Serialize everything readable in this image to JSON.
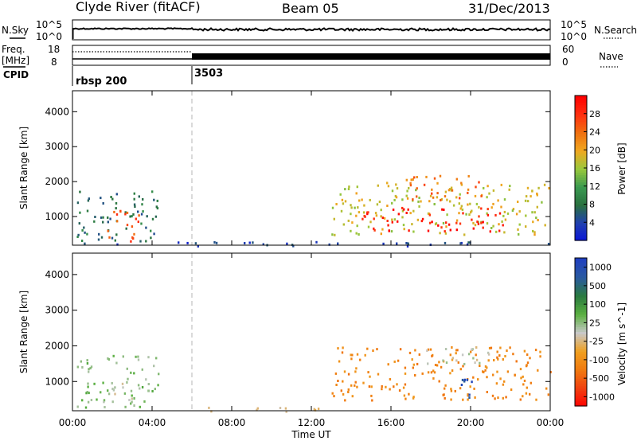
{
  "header": {
    "station": "Clyde River (fitACF)",
    "beam": "Beam 05",
    "date": "31/Dec/2013"
  },
  "strip_labels": {
    "nsky": "N.Sky",
    "nsearch": "N.Search",
    "freq_line1": "Freq.",
    "freq_line2": "[MHz]",
    "nave": "Nave",
    "cpid": "CPID"
  },
  "chart_data": [
    {
      "type": "line",
      "name": "noise",
      "x_range": [
        "00:00",
        "24:00"
      ],
      "left_ticks": [
        "10^5",
        "10^0"
      ],
      "right_ticks": [
        "10^5",
        "10^0"
      ],
      "series": [
        {
          "name": "N.Sky",
          "style": "solid",
          "level": "high, flat with small fluctuations"
        },
        {
          "name": "N.Search",
          "style": "dotted"
        }
      ]
    },
    {
      "type": "line",
      "name": "frequency_nave",
      "x_range": [
        "00:00",
        "24:00"
      ],
      "left_ticks": [
        "18",
        "8"
      ],
      "right_ticks": [
        "60",
        "0"
      ],
      "series": [
        {
          "name": "Freq.",
          "unit": "MHz",
          "points": [
            [
              "00:00",
              10.5
            ],
            [
              "24:00",
              10.5
            ]
          ]
        },
        {
          "name": "Nave",
          "style": "dotted",
          "points": [
            [
              "00:00",
              30
            ],
            [
              "06:00",
              30
            ],
            [
              "06:00",
              21
            ],
            [
              "24:00",
              21
            ]
          ]
        }
      ]
    },
    {
      "type": "table",
      "name": "cpid",
      "segments": [
        {
          "start": "00:00",
          "end": "06:00",
          "label": "rbsp 200"
        },
        {
          "start": "06:00",
          "end": "24:00",
          "label": "3503"
        }
      ]
    },
    {
      "type": "heatmap",
      "name": "power",
      "ylabel": "Slant Range [km]",
      "y_ticks": [
        "1000",
        "2000",
        "3000",
        "4000"
      ],
      "ylim": [
        180,
        4600
      ],
      "colorbar_label": "Power [dB]",
      "colorbar_ticks": [
        "4",
        "8",
        "12",
        "16",
        "20",
        "24",
        "28"
      ],
      "colorbar_range": [
        0,
        32
      ],
      "colorbar_colors": [
        "#0a14d8",
        "#2040b0",
        "#2a7040",
        "#3a9a50",
        "#9ac83c",
        "#f0a820",
        "#f07010",
        "#ff3010",
        "#ff0000"
      ],
      "regions": [
        {
          "t0": 0.2,
          "t1": 4.3,
          "r0": 300,
          "r1": 1800,
          "level": 8
        },
        {
          "t0": 1.7,
          "t1": 3.3,
          "r0": 300,
          "r1": 1300,
          "level": 26
        },
        {
          "t0": 13.0,
          "t1": 24.0,
          "r0": 500,
          "r1": 2000,
          "level": 18
        },
        {
          "t0": 14.5,
          "t1": 21.8,
          "r0": 600,
          "r1": 1300,
          "level": 30
        },
        {
          "t0": 16.5,
          "t1": 20.5,
          "r0": 1500,
          "r1": 2200,
          "level": 24
        },
        {
          "t0": 0.0,
          "t1": 24.0,
          "r0": 180,
          "r1": 300,
          "level": 4
        }
      ]
    },
    {
      "type": "heatmap",
      "name": "velocity",
      "ylabel": "Slant Range [km]",
      "y_ticks": [
        "1000",
        "2000",
        "3000",
        "4000"
      ],
      "ylim": [
        180,
        4600
      ],
      "colorbar_label": "Velocity [m s^-1]",
      "colorbar_ticks": [
        "1000",
        "500",
        "100",
        "25",
        "-25",
        "-100",
        "-500",
        "-1000"
      ],
      "colorbar_range": [
        -1200,
        1200
      ],
      "colorbar_colors": [
        "#2040c0",
        "#2a5aa0",
        "#2a7a40",
        "#5ab040",
        "#c8c8c8",
        "#f0a020",
        "#f07a10",
        "#f04010",
        "#ff0000"
      ],
      "regions": [
        {
          "t0": 0.2,
          "t1": 4.3,
          "r0": 300,
          "r1": 1800,
          "velocity": 200
        },
        {
          "t0": 1.5,
          "t1": 3.0,
          "r0": 500,
          "r1": 1000,
          "velocity": 0
        },
        {
          "t0": 6.0,
          "t1": 12.5,
          "r0": 180,
          "r1": 320,
          "velocity": -80
        },
        {
          "t0": 13.0,
          "t1": 24.0,
          "r0": 500,
          "r1": 2000,
          "velocity": -500
        },
        {
          "t0": 17.5,
          "t1": 21.0,
          "r0": 1500,
          "r1": 2000,
          "velocity": 0
        },
        {
          "t0": 19.5,
          "t1": 20.7,
          "r0": 500,
          "r1": 1100,
          "velocity": 1000
        }
      ],
      "x_ticks": [
        "00:00",
        "04:00",
        "08:00",
        "12:00",
        "16:00",
        "20:00",
        "00:00"
      ],
      "xlabel": "Time UT"
    }
  ]
}
